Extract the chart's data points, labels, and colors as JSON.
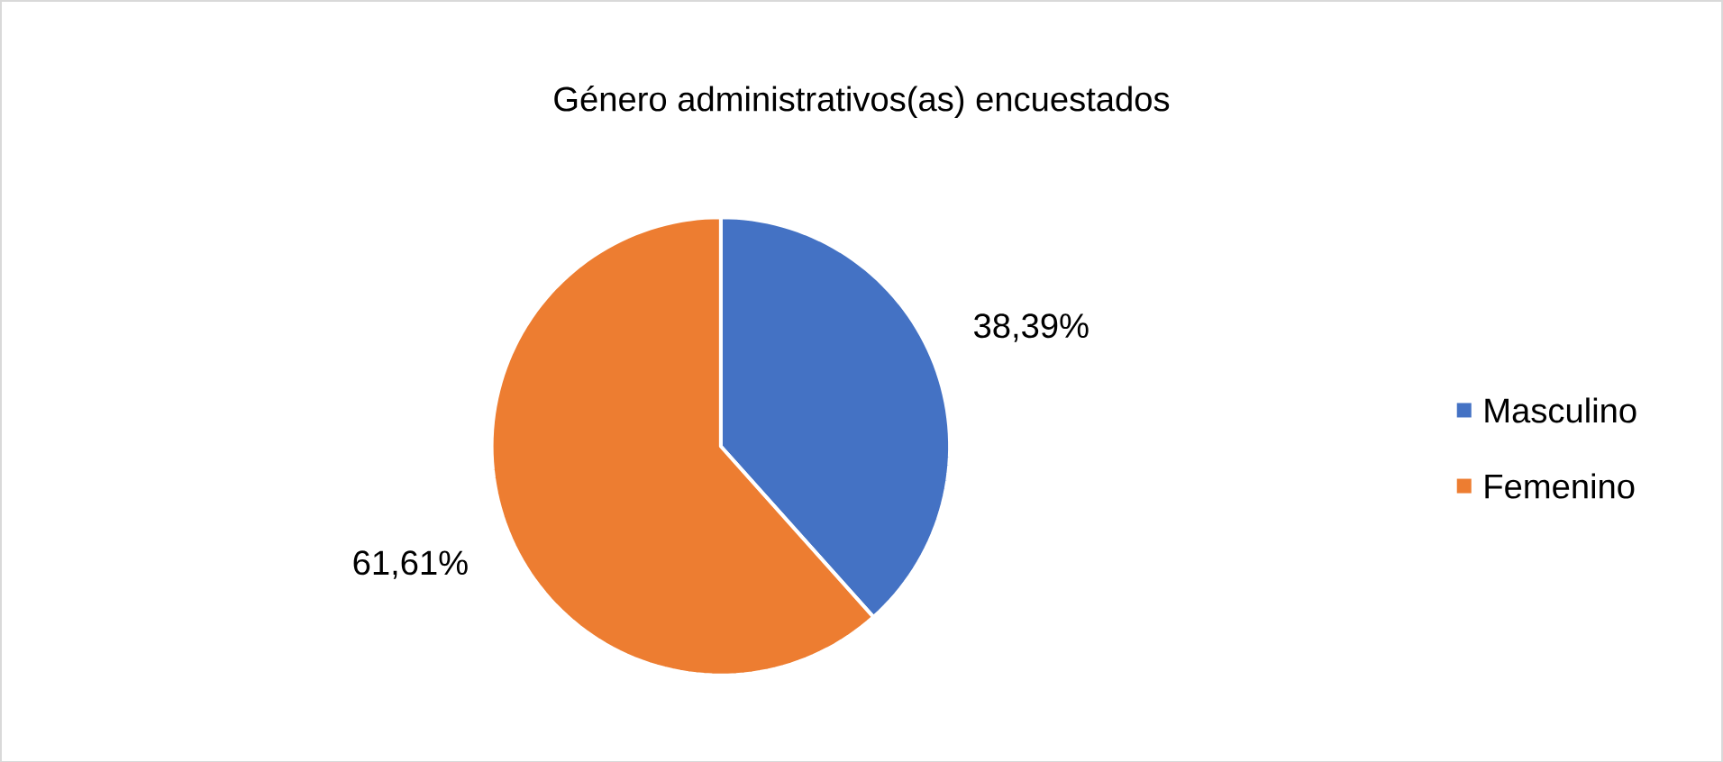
{
  "chart_data": {
    "type": "pie",
    "title": "Género administrativos(as) encuestados",
    "categories": [
      "Masculino",
      "Femenino"
    ],
    "values": [
      38.39,
      61.61
    ],
    "value_labels": [
      "38,39%",
      "61,61%"
    ],
    "colors": [
      "#4472c4",
      "#ed7d31"
    ],
    "legend": "right"
  }
}
